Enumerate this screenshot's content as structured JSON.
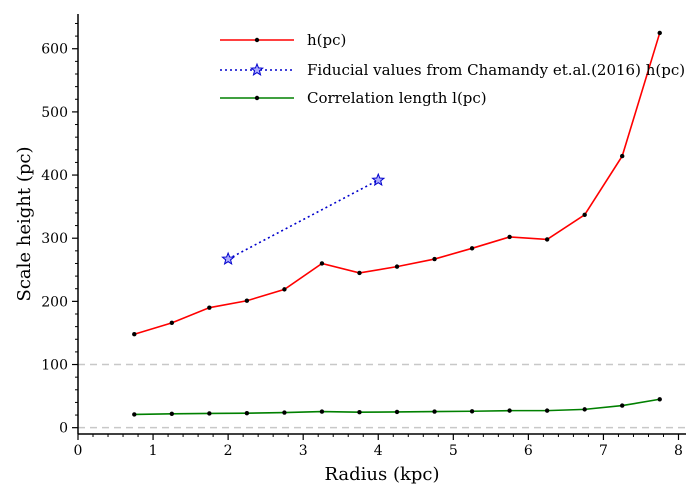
{
  "chart_data": {
    "type": "line",
    "title": "",
    "xlabel": "Radius (kpc)",
    "ylabel": "Scale height (pc)",
    "xlim": [
      0,
      8.1
    ],
    "ylim": [
      -10,
      655
    ],
    "x_ticks": [
      0,
      1,
      2,
      3,
      4,
      5,
      6,
      7,
      8
    ],
    "y_ticks": [
      0,
      100,
      200,
      300,
      400,
      500,
      600
    ],
    "reference_lines": [
      0,
      100
    ],
    "legend_position": "top-center",
    "series": [
      {
        "name": "h(pc)",
        "legend_label": "h(pc)",
        "color": "#ff0000",
        "style": "solid",
        "marker": "dot",
        "x": [
          0.75,
          1.25,
          1.75,
          2.25,
          2.75,
          3.25,
          3.75,
          4.25,
          4.75,
          5.25,
          5.75,
          6.25,
          6.75,
          7.25,
          7.75
        ],
        "y": [
          148,
          166,
          190,
          201,
          219,
          260,
          245,
          255,
          267,
          284,
          302,
          298,
          337,
          430,
          625
        ]
      },
      {
        "name": "Fiducial values",
        "legend_label": "Fiducial values from Chamandy et.al.(2016) h(pc)",
        "color": "#0000cc",
        "style": "dotted",
        "marker": "star",
        "x": [
          2.0,
          4.0
        ],
        "y": [
          267,
          392
        ]
      },
      {
        "name": "Correlation length",
        "legend_label": "Correlation length l(pc)",
        "color": "#008000",
        "style": "solid",
        "marker": "dot",
        "x": [
          0.75,
          1.25,
          1.75,
          2.25,
          2.75,
          3.25,
          3.75,
          4.25,
          4.75,
          5.25,
          5.75,
          6.25,
          6.75,
          7.25,
          7.75
        ],
        "y": [
          21,
          22,
          22.5,
          23,
          24,
          25.5,
          24.5,
          25,
          25.5,
          26,
          27,
          27,
          29,
          35,
          45
        ]
      }
    ]
  }
}
